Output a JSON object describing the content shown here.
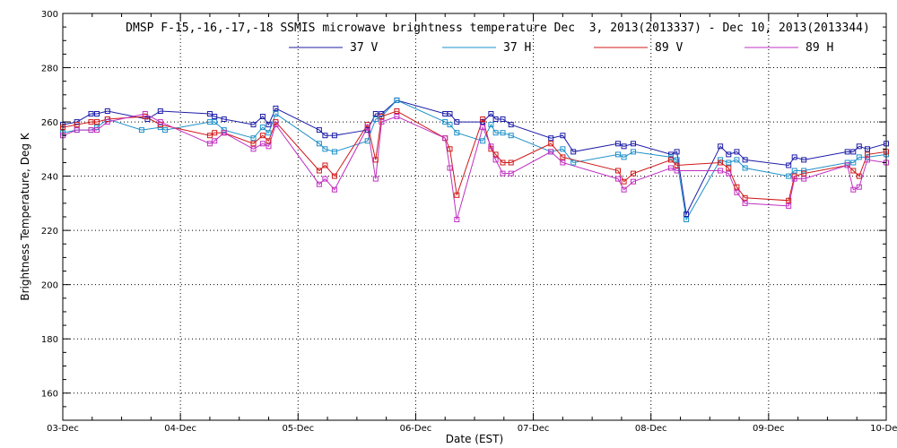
{
  "chart_data": {
    "type": "line",
    "title": "DMSP F-15,-16,-17,-18 SSMIS microwave brightness temperature Dec  3, 2013(2013337) - Dec 10, 2013(2013344)",
    "xlabel": "Date (EST)",
    "ylabel": "Brightness Temperature, Deg K",
    "xlim": [
      0,
      7
    ],
    "ylim": [
      150,
      300
    ],
    "yticks": [
      160,
      180,
      200,
      220,
      240,
      260,
      280,
      300
    ],
    "xtick_labels": [
      "03-Dec",
      "04-Dec",
      "05-Dec",
      "06-Dec",
      "07-Dec",
      "08-Dec",
      "09-Dec",
      "10-Dec"
    ],
    "grid": true,
    "legend_position": "top-center",
    "series": [
      {
        "name": "37 V",
        "color": "#1c1ca8",
        "x": [
          0.0,
          0.12,
          0.24,
          0.29,
          0.38,
          0.72,
          0.83,
          1.25,
          1.29,
          1.37,
          1.62,
          1.7,
          1.75,
          1.81,
          2.18,
          2.23,
          2.31,
          2.59,
          2.66,
          2.71,
          2.84,
          3.25,
          3.29,
          3.35,
          3.57,
          3.64,
          3.68,
          3.74,
          3.81,
          4.15,
          4.25,
          4.34,
          4.72,
          4.77,
          4.85,
          5.17,
          5.22,
          5.3,
          5.59,
          5.66,
          5.73,
          5.8,
          6.17,
          6.22,
          6.3,
          6.67,
          6.72,
          6.77,
          6.84,
          7.0
        ],
        "y": [
          259,
          260,
          263,
          263,
          264,
          261,
          264,
          263,
          262,
          261,
          259,
          262,
          259,
          265,
          257,
          255,
          255,
          257,
          263,
          263,
          268,
          263,
          263,
          260,
          260,
          263,
          261,
          261,
          259,
          254,
          255,
          249,
          252,
          251,
          252,
          248,
          249,
          226,
          251,
          248,
          249,
          246,
          244,
          247,
          246,
          249,
          249,
          251,
          250,
          252
        ]
      },
      {
        "name": "37 H",
        "color": "#1e90c8",
        "x": [
          0.0,
          0.12,
          0.24,
          0.29,
          0.38,
          0.67,
          0.83,
          0.87,
          1.25,
          1.29,
          1.37,
          1.62,
          1.7,
          1.75,
          1.81,
          2.18,
          2.23,
          2.31,
          2.59,
          2.66,
          2.71,
          2.84,
          3.25,
          3.29,
          3.35,
          3.57,
          3.64,
          3.68,
          3.74,
          3.81,
          4.15,
          4.25,
          4.34,
          4.72,
          4.77,
          4.85,
          5.17,
          5.22,
          5.3,
          5.59,
          5.66,
          5.73,
          5.8,
          6.17,
          6.22,
          6.3,
          6.67,
          6.72,
          6.77,
          6.84,
          7.0
        ],
        "y": [
          256,
          257,
          257,
          258,
          261,
          257,
          258,
          257,
          260,
          260,
          257,
          254,
          258,
          256,
          263,
          252,
          250,
          249,
          253,
          261,
          262,
          268,
          260,
          259,
          256,
          253,
          259,
          256,
          256,
          255,
          249,
          250,
          245,
          248,
          247,
          249,
          247,
          246,
          224,
          246,
          245,
          246,
          243,
          240,
          242,
          242,
          245,
          245,
          247,
          247,
          248
        ]
      },
      {
        "name": "89 V",
        "color": "#d01818",
        "x": [
          0.0,
          0.12,
          0.24,
          0.29,
          0.38,
          0.7,
          0.83,
          1.25,
          1.29,
          1.37,
          1.62,
          1.7,
          1.75,
          1.81,
          2.18,
          2.23,
          2.31,
          2.59,
          2.66,
          2.71,
          2.84,
          3.25,
          3.29,
          3.35,
          3.57,
          3.64,
          3.68,
          3.74,
          3.81,
          4.15,
          4.25,
          4.72,
          4.77,
          4.85,
          5.17,
          5.22,
          5.59,
          5.66,
          5.73,
          5.8,
          6.17,
          6.22,
          6.3,
          6.67,
          6.72,
          6.77,
          6.84,
          7.0
        ],
        "y": [
          258,
          259,
          260,
          260,
          261,
          262,
          259,
          255,
          256,
          256,
          252,
          255,
          253,
          260,
          242,
          244,
          240,
          259,
          246,
          262,
          264,
          254,
          250,
          233,
          261,
          250,
          248,
          245,
          245,
          252,
          247,
          242,
          238,
          241,
          246,
          244,
          245,
          243,
          236,
          232,
          231,
          240,
          241,
          244,
          242,
          240,
          248,
          249
        ]
      },
      {
        "name": "89 H",
        "color": "#c030c0",
        "x": [
          0.0,
          0.12,
          0.24,
          0.29,
          0.38,
          0.7,
          0.83,
          1.25,
          1.29,
          1.37,
          1.62,
          1.7,
          1.75,
          1.81,
          2.18,
          2.23,
          2.31,
          2.59,
          2.66,
          2.71,
          2.84,
          3.25,
          3.29,
          3.35,
          3.57,
          3.64,
          3.68,
          3.74,
          3.81,
          4.15,
          4.25,
          4.72,
          4.77,
          4.85,
          5.17,
          5.22,
          5.59,
          5.66,
          5.73,
          5.8,
          6.17,
          6.22,
          6.3,
          6.67,
          6.72,
          6.77,
          6.84,
          7.0
        ],
        "y": [
          255,
          257,
          257,
          257,
          260,
          263,
          260,
          252,
          253,
          256,
          250,
          252,
          251,
          259,
          237,
          239,
          235,
          258,
          239,
          260,
          262,
          254,
          243,
          224,
          258,
          251,
          246,
          241,
          241,
          249,
          245,
          239,
          235,
          238,
          243,
          242,
          242,
          241,
          234,
          230,
          229,
          239,
          239,
          244,
          235,
          236,
          246,
          245
        ]
      }
    ]
  }
}
